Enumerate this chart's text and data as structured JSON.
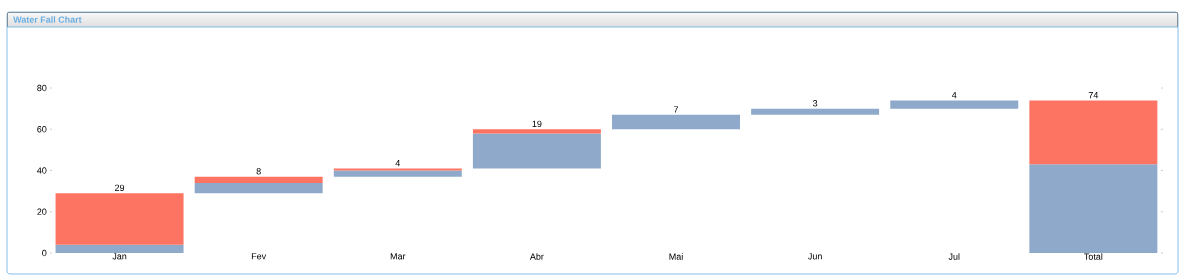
{
  "chart_data": {
    "type": "bar",
    "title": "Water Fall Chart",
    "categories": [
      "Jan",
      "Fev",
      "Mar",
      "Abr",
      "Mai",
      "Jun",
      "Jul",
      "Total"
    ],
    "series": [
      {
        "color": "#8ea9ca",
        "base": [
          0,
          29,
          37,
          41,
          60,
          67,
          70,
          0
        ],
        "values": [
          4,
          5,
          3,
          17,
          7,
          3,
          4,
          43
        ]
      },
      {
        "color": "#fd7462",
        "base": [
          4,
          34,
          40,
          58,
          null,
          null,
          null,
          43
        ],
        "values": [
          25,
          3,
          1,
          2,
          null,
          null,
          null,
          31
        ]
      }
    ],
    "ylim": [
      0,
      80
    ],
    "yticks": [
      0,
      20,
      40,
      60,
      80
    ],
    "totals": [
      "29",
      "8",
      "4",
      "19",
      "7",
      "3",
      "4",
      "74"
    ]
  }
}
